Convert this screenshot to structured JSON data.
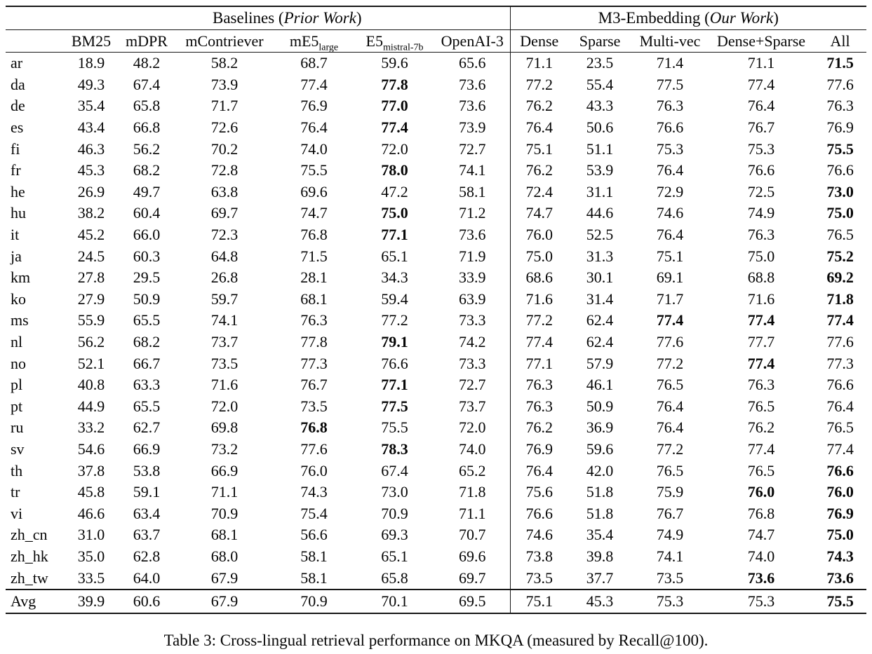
{
  "table": {
    "groups": [
      {
        "prefix": "Baselines (",
        "italic": "Prior Work",
        "suffix": ")"
      },
      {
        "prefix": "M3-Embedding (",
        "italic": "Our Work",
        "suffix": ")"
      }
    ],
    "columns": [
      {
        "id": "bm25",
        "label": "BM25",
        "sub": ""
      },
      {
        "id": "mdpr",
        "label": "mDPR",
        "sub": ""
      },
      {
        "id": "mcontriever",
        "label": "mContriever",
        "sub": ""
      },
      {
        "id": "me5-large",
        "label": "mE5",
        "sub": "large"
      },
      {
        "id": "e5-mistral-7b",
        "label": "E5",
        "sub": "mistral-7b"
      },
      {
        "id": "openai-3",
        "label": "OpenAI-3",
        "sub": ""
      },
      {
        "id": "dense",
        "label": "Dense",
        "sub": ""
      },
      {
        "id": "sparse",
        "label": "Sparse",
        "sub": ""
      },
      {
        "id": "multi-vec",
        "label": "Multi-vec",
        "sub": ""
      },
      {
        "id": "dense-sparse",
        "label": "Dense+Sparse",
        "sub": ""
      },
      {
        "id": "all",
        "label": "All",
        "sub": ""
      }
    ],
    "rows": [
      {
        "lang": "ar",
        "cells": [
          "18.9",
          "48.2",
          "58.2",
          "68.7",
          "59.6",
          "65.6",
          "71.1",
          "23.5",
          "71.4",
          "71.1",
          "71.5"
        ],
        "bold": [
          10
        ]
      },
      {
        "lang": "da",
        "cells": [
          "49.3",
          "67.4",
          "73.9",
          "77.4",
          "77.8",
          "73.6",
          "77.2",
          "55.4",
          "77.5",
          "77.4",
          "77.6"
        ],
        "bold": [
          4
        ]
      },
      {
        "lang": "de",
        "cells": [
          "35.4",
          "65.8",
          "71.7",
          "76.9",
          "77.0",
          "73.6",
          "76.2",
          "43.3",
          "76.3",
          "76.4",
          "76.3"
        ],
        "bold": [
          4
        ]
      },
      {
        "lang": "es",
        "cells": [
          "43.4",
          "66.8",
          "72.6",
          "76.4",
          "77.4",
          "73.9",
          "76.4",
          "50.6",
          "76.6",
          "76.7",
          "76.9"
        ],
        "bold": [
          4
        ]
      },
      {
        "lang": "fi",
        "cells": [
          "46.3",
          "56.2",
          "70.2",
          "74.0",
          "72.0",
          "72.7",
          "75.1",
          "51.1",
          "75.3",
          "75.3",
          "75.5"
        ],
        "bold": [
          10
        ]
      },
      {
        "lang": "fr",
        "cells": [
          "45.3",
          "68.2",
          "72.8",
          "75.5",
          "78.0",
          "74.1",
          "76.2",
          "53.9",
          "76.4",
          "76.6",
          "76.6"
        ],
        "bold": [
          4
        ]
      },
      {
        "lang": "he",
        "cells": [
          "26.9",
          "49.7",
          "63.8",
          "69.6",
          "47.2",
          "58.1",
          "72.4",
          "31.1",
          "72.9",
          "72.5",
          "73.0"
        ],
        "bold": [
          10
        ]
      },
      {
        "lang": "hu",
        "cells": [
          "38.2",
          "60.4",
          "69.7",
          "74.7",
          "75.0",
          "71.2",
          "74.7",
          "44.6",
          "74.6",
          "74.9",
          "75.0"
        ],
        "bold": [
          4,
          10
        ]
      },
      {
        "lang": "it",
        "cells": [
          "45.2",
          "66.0",
          "72.3",
          "76.8",
          "77.1",
          "73.6",
          "76.0",
          "52.5",
          "76.4",
          "76.3",
          "76.5"
        ],
        "bold": [
          4
        ]
      },
      {
        "lang": "ja",
        "cells": [
          "24.5",
          "60.3",
          "64.8",
          "71.5",
          "65.1",
          "71.9",
          "75.0",
          "31.3",
          "75.1",
          "75.0",
          "75.2"
        ],
        "bold": [
          10
        ]
      },
      {
        "lang": "km",
        "cells": [
          "27.8",
          "29.5",
          "26.8",
          "28.1",
          "34.3",
          "33.9",
          "68.6",
          "30.1",
          "69.1",
          "68.8",
          "69.2"
        ],
        "bold": [
          10
        ]
      },
      {
        "lang": "ko",
        "cells": [
          "27.9",
          "50.9",
          "59.7",
          "68.1",
          "59.4",
          "63.9",
          "71.6",
          "31.4",
          "71.7",
          "71.6",
          "71.8"
        ],
        "bold": [
          10
        ]
      },
      {
        "lang": "ms",
        "cells": [
          "55.9",
          "65.5",
          "74.1",
          "76.3",
          "77.2",
          "73.3",
          "77.2",
          "62.4",
          "77.4",
          "77.4",
          "77.4"
        ],
        "bold": [
          8,
          9,
          10
        ]
      },
      {
        "lang": "nl",
        "cells": [
          "56.2",
          "68.2",
          "73.7",
          "77.8",
          "79.1",
          "74.2",
          "77.4",
          "62.4",
          "77.6",
          "77.7",
          "77.6"
        ],
        "bold": [
          4
        ]
      },
      {
        "lang": "no",
        "cells": [
          "52.1",
          "66.7",
          "73.5",
          "77.3",
          "76.6",
          "73.3",
          "77.1",
          "57.9",
          "77.2",
          "77.4",
          "77.3"
        ],
        "bold": [
          9
        ]
      },
      {
        "lang": "pl",
        "cells": [
          "40.8",
          "63.3",
          "71.6",
          "76.7",
          "77.1",
          "72.7",
          "76.3",
          "46.1",
          "76.5",
          "76.3",
          "76.6"
        ],
        "bold": [
          4
        ]
      },
      {
        "lang": "pt",
        "cells": [
          "44.9",
          "65.5",
          "72.0",
          "73.5",
          "77.5",
          "73.7",
          "76.3",
          "50.9",
          "76.4",
          "76.5",
          "76.4"
        ],
        "bold": [
          4
        ]
      },
      {
        "lang": "ru",
        "cells": [
          "33.2",
          "62.7",
          "69.8",
          "76.8",
          "75.5",
          "72.0",
          "76.2",
          "36.9",
          "76.4",
          "76.2",
          "76.5"
        ],
        "bold": [
          3
        ]
      },
      {
        "lang": "sv",
        "cells": [
          "54.6",
          "66.9",
          "73.2",
          "77.6",
          "78.3",
          "74.0",
          "76.9",
          "59.6",
          "77.2",
          "77.4",
          "77.4"
        ],
        "bold": [
          4
        ]
      },
      {
        "lang": "th",
        "cells": [
          "37.8",
          "53.8",
          "66.9",
          "76.0",
          "67.4",
          "65.2",
          "76.4",
          "42.0",
          "76.5",
          "76.5",
          "76.6"
        ],
        "bold": [
          10
        ]
      },
      {
        "lang": "tr",
        "cells": [
          "45.8",
          "59.1",
          "71.1",
          "74.3",
          "73.0",
          "71.8",
          "75.6",
          "51.8",
          "75.9",
          "76.0",
          "76.0"
        ],
        "bold": [
          9,
          10
        ]
      },
      {
        "lang": "vi",
        "cells": [
          "46.6",
          "63.4",
          "70.9",
          "75.4",
          "70.9",
          "71.1",
          "76.6",
          "51.8",
          "76.7",
          "76.8",
          "76.9"
        ],
        "bold": [
          10
        ]
      },
      {
        "lang": "zh_cn",
        "cells": [
          "31.0",
          "63.7",
          "68.1",
          "56.6",
          "69.3",
          "70.7",
          "74.6",
          "35.4",
          "74.9",
          "74.7",
          "75.0"
        ],
        "bold": [
          10
        ]
      },
      {
        "lang": "zh_hk",
        "cells": [
          "35.0",
          "62.8",
          "68.0",
          "58.1",
          "65.1",
          "69.6",
          "73.8",
          "39.8",
          "74.1",
          "74.0",
          "74.3"
        ],
        "bold": [
          10
        ]
      },
      {
        "lang": "zh_tw",
        "cells": [
          "33.5",
          "64.0",
          "67.9",
          "58.1",
          "65.8",
          "69.7",
          "73.5",
          "37.7",
          "73.5",
          "73.6",
          "73.6"
        ],
        "bold": [
          9,
          10
        ]
      },
      {
        "lang": "Avg",
        "cells": [
          "39.9",
          "60.6",
          "67.9",
          "70.9",
          "70.1",
          "69.5",
          "75.1",
          "45.3",
          "75.3",
          "75.3",
          "75.5"
        ],
        "bold": [
          10
        ]
      }
    ]
  },
  "caption": "Table 3: Cross-lingual retrieval performance on MKQA (measured by Recall@100)."
}
